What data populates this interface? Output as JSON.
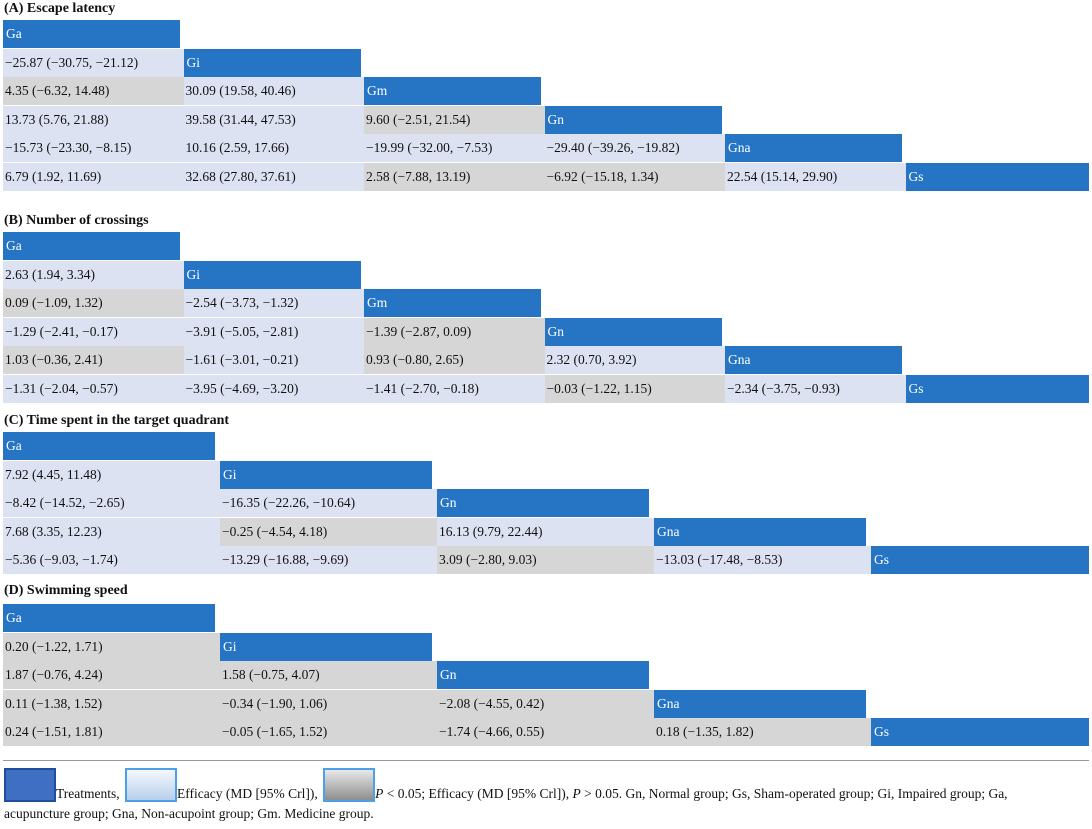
{
  "panels": [
    {
      "title": "(A) Escape latency",
      "treatments": [
        "Ga",
        "Gi",
        "Gm",
        "Gn",
        "Gna",
        "Gs"
      ],
      "rows": [
        [],
        [
          {
            "text": "−25.87 (−30.75, −21.12)",
            "shade": "light"
          }
        ],
        [
          {
            "text": "4.35 (−6.32, 14.48)",
            "shade": "gray"
          },
          {
            "text": "30.09 (19.58, 40.46)",
            "shade": "light"
          }
        ],
        [
          {
            "text": "13.73 (5.76, 21.88)",
            "shade": "light"
          },
          {
            "text": "39.58 (31.44, 47.53)",
            "shade": "light"
          },
          {
            "text": "9.60 (−2.51, 21.54)",
            "shade": "gray"
          }
        ],
        [
          {
            "text": "−15.73 (−23.30, −8.15)",
            "shade": "light"
          },
          {
            "text": "10.16 (2.59, 17.66)",
            "shade": "light"
          },
          {
            "text": "−19.99 (−32.00, −7.53)",
            "shade": "light"
          },
          {
            "text": "−29.40 (−39.26, −19.82)",
            "shade": "light"
          }
        ],
        [
          {
            "text": "6.79 (1.92, 11.69)",
            "shade": "light"
          },
          {
            "text": "32.68 (27.80, 37.61)",
            "shade": "light"
          },
          {
            "text": "2.58 (−7.88, 13.19)",
            "shade": "gray"
          },
          {
            "text": "−6.92 (−15.18, 1.34)",
            "shade": "gray"
          },
          {
            "text": "22.54 (15.14, 29.90)",
            "shade": "light"
          }
        ]
      ]
    },
    {
      "title": "(B) Number of crossings",
      "treatments": [
        "Ga",
        "Gi",
        "Gm",
        "Gn",
        "Gna",
        "Gs"
      ],
      "rows": [
        [],
        [
          {
            "text": "2.63 (1.94, 3.34)",
            "shade": "light"
          }
        ],
        [
          {
            "text": "0.09 (−1.09, 1.32)",
            "shade": "gray"
          },
          {
            "text": "−2.54 (−3.73, −1.32)",
            "shade": "light"
          }
        ],
        [
          {
            "text": "−1.29 (−2.41, −0.17)",
            "shade": "light"
          },
          {
            "text": "−3.91 (−5.05, −2.81)",
            "shade": "light"
          },
          {
            "text": "−1.39 (−2.87, 0.09)",
            "shade": "gray"
          }
        ],
        [
          {
            "text": "1.03 (−0.36, 2.41)",
            "shade": "gray"
          },
          {
            "text": "−1.61 (−3.01, −0.21)",
            "shade": "light"
          },
          {
            "text": "0.93 (−0.80, 2.65)",
            "shade": "gray"
          },
          {
            "text": "2.32 (0.70, 3.92)",
            "shade": "light"
          }
        ],
        [
          {
            "text": "−1.31 (−2.04, −0.57)",
            "shade": "light"
          },
          {
            "text": "−3.95 (−4.69, −3.20)",
            "shade": "light"
          },
          {
            "text": "−1.41 (−2.70, −0.18)",
            "shade": "light"
          },
          {
            "text": "−0.03 (−1.22, 1.15)",
            "shade": "gray"
          },
          {
            "text": "−2.34 (−3.75, −0.93)",
            "shade": "light"
          }
        ]
      ]
    },
    {
      "title": "(C) Time spent in the target quadrant",
      "treatments": [
        "Ga",
        "Gi",
        "Gn",
        "Gna",
        "Gs"
      ],
      "rows": [
        [],
        [
          {
            "text": "7.92 (4.45, 11.48)",
            "shade": "light"
          }
        ],
        [
          {
            "text": "−8.42 (−14.52, −2.65)",
            "shade": "light"
          },
          {
            "text": "−16.35 (−22.26, −10.64)",
            "shade": "light"
          }
        ],
        [
          {
            "text": "7.68 (3.35, 12.23)",
            "shade": "light"
          },
          {
            "text": "−0.25 (−4.54, 4.18)",
            "shade": "gray"
          },
          {
            "text": "16.13 (9.79, 22.44)",
            "shade": "light"
          }
        ],
        [
          {
            "text": "−5.36 (−9.03, −1.74)",
            "shade": "light"
          },
          {
            "text": "−13.29 (−16.88, −9.69)",
            "shade": "light"
          },
          {
            "text": "3.09 (−2.80, 9.03)",
            "shade": "gray"
          },
          {
            "text": "−13.03 (−17.48, −8.53)",
            "shade": "light"
          }
        ]
      ]
    },
    {
      "title": "(D) Swimming speed",
      "treatments": [
        "Ga",
        "Gi",
        "Gn",
        "Gna",
        "Gs"
      ],
      "rows": [
        [],
        [
          {
            "text": "0.20 (−1.22, 1.71)",
            "shade": "gray"
          }
        ],
        [
          {
            "text": "1.87 (−0.76, 4.24)",
            "shade": "gray"
          },
          {
            "text": "1.58 (−0.75, 4.07)",
            "shade": "gray"
          }
        ],
        [
          {
            "text": "0.11 (−1.38, 1.52)",
            "shade": "gray"
          },
          {
            "text": "−0.34 (−1.90, 1.06)",
            "shade": "gray"
          },
          {
            "text": "−2.08 (−4.55, 0.42)",
            "shade": "gray"
          }
        ],
        [
          {
            "text": "0.24 (−1.51, 1.81)",
            "shade": "gray"
          },
          {
            "text": "−0.05 (−1.65, 1.52)",
            "shade": "gray"
          },
          {
            "text": "−1.74 (−4.66, 0.55)",
            "shade": "gray"
          },
          {
            "text": "0.18 (−1.35, 1.82)",
            "shade": "gray"
          }
        ]
      ]
    }
  ],
  "legend": {
    "treatments_label": "Treatments,",
    "efficacy_light_label": "Efficacy (MD [95% Crl]),",
    "efficacy_gray_prefix": "P",
    "efficacy_gray_label": " < 0.05; Efficacy (MD [95% Crl]), ",
    "efficacy_gray_p2": "P",
    "efficacy_gray_tail": " > 0.05. Gn, Normal group; Gs, Sham-operated group; Gi, Impaired group; Ga,",
    "line2": "acupuncture group; Gna, Non-acupoint group; Gm. Medicine group.",
    "colors": {
      "treatment": "#2575c4",
      "efficacy_significant": "#dde2f3",
      "efficacy_not_significant": "#d6d6d6"
    }
  }
}
